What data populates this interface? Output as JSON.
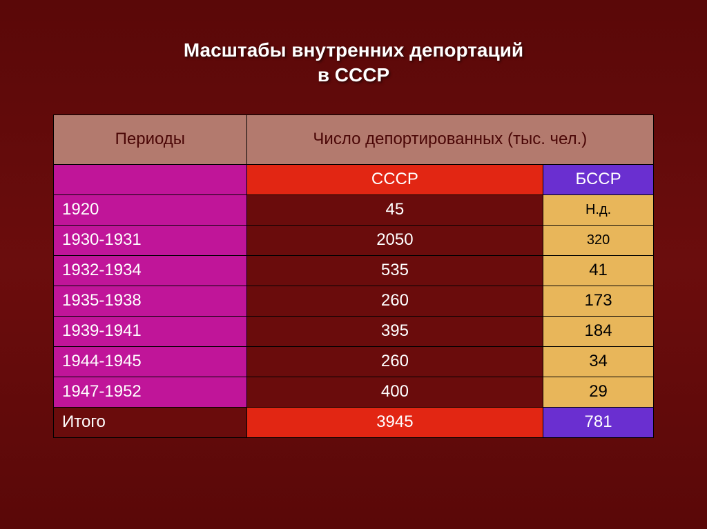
{
  "title_line1": "Масштабы внутренних депортаций",
  "title_line2": "в СССР",
  "colors": {
    "header_bg": "#b37a6e",
    "header_fg": "#4a0606",
    "magenta": "#c01599",
    "darkred": "#6a0c0c",
    "red": "#e22613",
    "purple": "#6a2fd0",
    "gold": "#e8b65a",
    "white": "#ffffff",
    "black": "#000000"
  },
  "headers": {
    "periods": "Периоды",
    "deported": "Число депортированных (тыс. чел.)",
    "ussr": "СССР",
    "bssr": "БССР"
  },
  "rows": [
    {
      "period": "1920",
      "ussr": "45",
      "bssr": "Н.д.",
      "bssr_small": true
    },
    {
      "period": "1930-1931",
      "ussr": "2050",
      "bssr": "320",
      "bssr_small": true
    },
    {
      "period": "1932-1934",
      "ussr": "535",
      "bssr": "41"
    },
    {
      "period": "1935-1938",
      "ussr": "260",
      "bssr": "173"
    },
    {
      "period": "1939-1941",
      "ussr": "395",
      "bssr": "184"
    },
    {
      "period": "1944-1945",
      "ussr": "260",
      "bssr": "34"
    },
    {
      "period": "1947-1952",
      "ussr": "400",
      "bssr": "29"
    }
  ],
  "total": {
    "label": "Итого",
    "ussr": "3945",
    "bssr": "781"
  }
}
